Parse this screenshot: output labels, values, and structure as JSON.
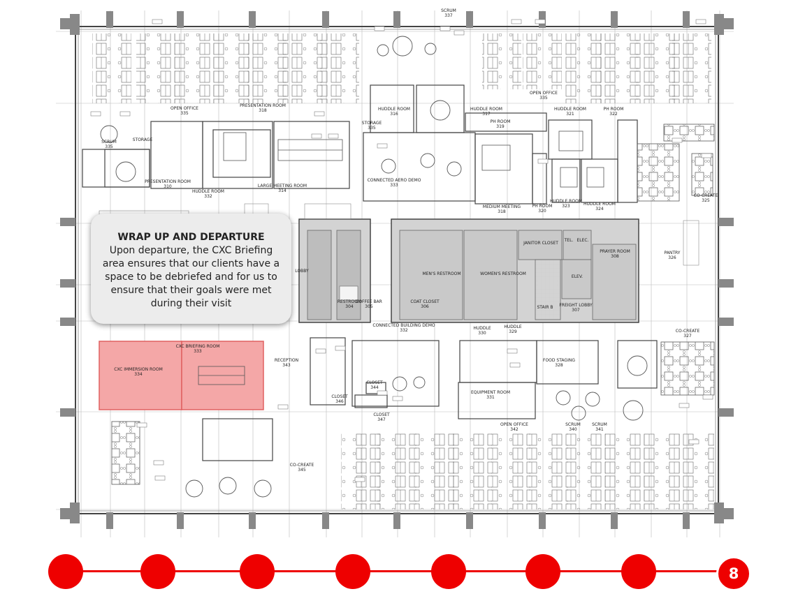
{
  "callout": {
    "title": "WRAP UP AND DEPARTURE",
    "body": "Upon departure, the CXC Briefing area ensures that our clients have a space to be debriefed and for us to ensure that their goals were met during their visit"
  },
  "rooms": [
    {
      "id": "scrum-337",
      "name": "SCRUM",
      "num": "337"
    },
    {
      "id": "open-office-335a",
      "name": "OPEN OFFICE",
      "num": "335"
    },
    {
      "id": "open-office-335b",
      "name": "OPEN OFFICE",
      "num": "335"
    },
    {
      "id": "presentation-room-318",
      "name": "PRESENTATION ROOM",
      "num": "318"
    },
    {
      "id": "scrum-335",
      "name": "SCRUM",
      "num": "335"
    },
    {
      "id": "storage-a",
      "name": "STORAGE",
      "num": ""
    },
    {
      "id": "storage-335",
      "name": "STORAGE",
      "num": "335"
    },
    {
      "id": "huddle-room-316",
      "name": "HUDDLE ROOM",
      "num": "316"
    },
    {
      "id": "huddle-room-317",
      "name": "HUDDLE ROOM",
      "num": "317"
    },
    {
      "id": "huddle-room-321",
      "name": "HUDDLE ROOM",
      "num": "321"
    },
    {
      "id": "ph-room-322",
      "name": "PH ROOM",
      "num": "322"
    },
    {
      "id": "ph-room-319",
      "name": "PH ROOM",
      "num": "319"
    },
    {
      "id": "presentation-room-310",
      "name": "PRESENTATION ROOM",
      "num": "310"
    },
    {
      "id": "huddle-room-332",
      "name": "HUDDLE ROOM",
      "num": "332"
    },
    {
      "id": "large-meeting-room-314",
      "name": "LARGE MEETING ROOM",
      "num": "314"
    },
    {
      "id": "connected-aero-demo-333",
      "name": "CONNECTED AERO DEMO",
      "num": "333"
    },
    {
      "id": "medium-meeting-318",
      "name": "MEDIUM MEETING",
      "num": "318"
    },
    {
      "id": "ph-room-320",
      "name": "PH ROOM",
      "num": "320"
    },
    {
      "id": "huddle-room-323",
      "name": "HUDDLE ROOM",
      "num": "323"
    },
    {
      "id": "huddle-room-324",
      "name": "HUDDLE ROOM",
      "num": "324"
    },
    {
      "id": "co-create-325",
      "name": "CO-CREATE",
      "num": "325"
    },
    {
      "id": "restroom-304",
      "name": "RESTROOM",
      "num": "304"
    },
    {
      "id": "coffee-bar-305",
      "name": "COFFEE BAR",
      "num": "305"
    },
    {
      "id": "coat-closet-306",
      "name": "COAT CLOSET",
      "num": "306"
    },
    {
      "id": "mens-restroom",
      "name": "MEN'S RESTROOM",
      "num": ""
    },
    {
      "id": "womens-restroom",
      "name": "WOMEN'S RESTROOM",
      "num": ""
    },
    {
      "id": "janitor-closet",
      "name": "JANITOR CLOSET",
      "num": ""
    },
    {
      "id": "tel",
      "name": "TEL.",
      "num": ""
    },
    {
      "id": "elec",
      "name": "ELEC.",
      "num": ""
    },
    {
      "id": "elev",
      "name": "ELEV.",
      "num": ""
    },
    {
      "id": "stair-b",
      "name": "STAIR B",
      "num": ""
    },
    {
      "id": "freight-lobby-307",
      "name": "FREIGHT LOBBY",
      "num": "307"
    },
    {
      "id": "prayer-room-308",
      "name": "PRAYER ROOM",
      "num": "308"
    },
    {
      "id": "pantry-326",
      "name": "PANTRY",
      "num": "326"
    },
    {
      "id": "lobby",
      "name": "LOBBY",
      "num": ""
    },
    {
      "id": "cxc-immersion-room-334",
      "name": "CXC IMMERSION ROOM",
      "num": "334"
    },
    {
      "id": "cxc-briefing-room-333",
      "name": "CXC BRIEFING ROOM",
      "num": "333"
    },
    {
      "id": "reception-343",
      "name": "RECEPTION",
      "num": "343"
    },
    {
      "id": "connected-building-demo-332",
      "name": "CONNECTED BUILDING DEMO",
      "num": "332"
    },
    {
      "id": "closet-344",
      "name": "CLOSET",
      "num": "344"
    },
    {
      "id": "closet-346",
      "name": "CLOSET",
      "num": "346"
    },
    {
      "id": "closet-347",
      "name": "CLOSET",
      "num": "347"
    },
    {
      "id": "huddle-330",
      "name": "HUDDLE",
      "num": "330"
    },
    {
      "id": "huddle-329",
      "name": "HUDDLE",
      "num": "329"
    },
    {
      "id": "food-staging-328",
      "name": "FOOD STAGING",
      "num": "328"
    },
    {
      "id": "co-create-327",
      "name": "CO-CREATE",
      "num": "327"
    },
    {
      "id": "equipment-room-331",
      "name": "EQUIPMENT ROOM",
      "num": "331"
    },
    {
      "id": "open-office-342",
      "name": "OPEN OFFICE",
      "num": "342"
    },
    {
      "id": "scrum-340",
      "name": "SCRUM",
      "num": "340"
    },
    {
      "id": "scrum-341",
      "name": "SCRUM",
      "num": "341"
    },
    {
      "id": "co-create-345",
      "name": "CO-CREATE",
      "num": "345"
    }
  ],
  "timeline": {
    "steps": 8,
    "current": "8"
  },
  "colors": {
    "accent": "#ee0000",
    "highlight": "#f4a7a7",
    "core": "#d3d3d3"
  }
}
